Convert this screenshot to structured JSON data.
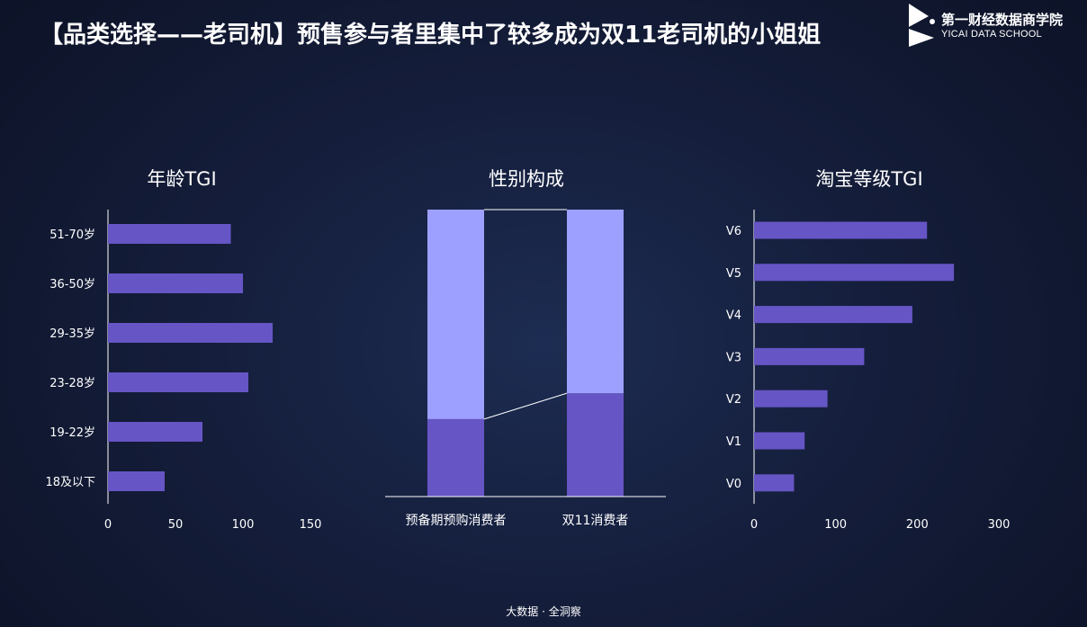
{
  "title": "【品类选择——老司机】预售参与者里集中了较多成为双11老司机的小姐姐",
  "logo": {
    "name_cn": "第一财经数据商学院",
    "name_en": "YICAI DATA SCHOOL"
  },
  "footer": "大数据 · 全洞察",
  "colors": {
    "bar": "#6655c5",
    "gender_top": "#9ea0ff",
    "gender_bottom": "#6655c5"
  },
  "chart_data": [
    {
      "type": "bar",
      "orientation": "horizontal",
      "title": "年龄TGI",
      "categories": [
        "51-70岁",
        "36-50岁",
        "29-35岁",
        "23-28岁",
        "19-22岁",
        "18及以下"
      ],
      "values": [
        91,
        100,
        122,
        104,
        70,
        42
      ],
      "xlim": [
        0,
        150
      ],
      "xticks": [
        0,
        50,
        100,
        150
      ],
      "grid": false,
      "legend": "none"
    },
    {
      "type": "bar",
      "orientation": "vertical",
      "stacked": true,
      "title": "性别构成",
      "categories": [
        "预备期预购消费者",
        "双11消费者"
      ],
      "series": [
        {
          "values": [
            27,
            36
          ]
        },
        {
          "values": [
            73,
            64
          ]
        }
      ],
      "ylim": [
        0,
        100
      ],
      "grid": false,
      "legend": "none"
    },
    {
      "type": "bar",
      "orientation": "horizontal",
      "title": "淘宝等级TGI",
      "categories": [
        "V6",
        "V5",
        "V4",
        "V3",
        "V2",
        "V1",
        "V0"
      ],
      "values": [
        212,
        245,
        194,
        135,
        90,
        62,
        49
      ],
      "xlim": [
        0,
        300
      ],
      "xticks": [
        0,
        100,
        200,
        300
      ],
      "grid": false,
      "legend": "none"
    }
  ]
}
